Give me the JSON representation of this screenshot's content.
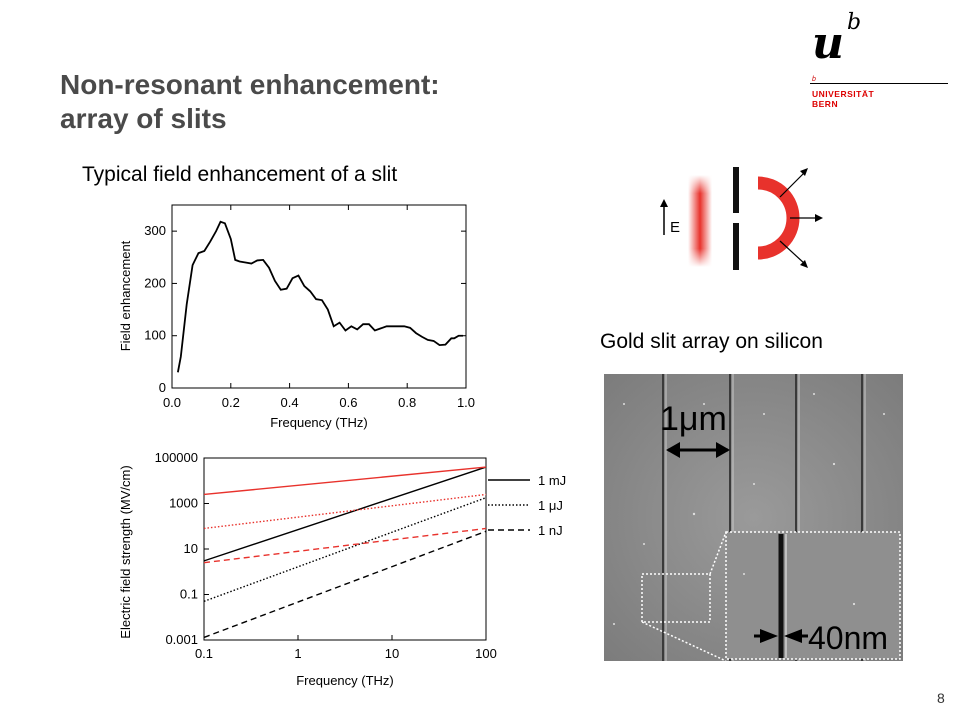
{
  "slide": {
    "title_line1": "Non-resonant enhancement:",
    "title_line2": "array of slits",
    "subtitle_left": "Typical field enhancement of a slit",
    "subtitle_right": "Gold slit array on silicon",
    "page_number": "8"
  },
  "logo": {
    "letter_u": "u",
    "letter_b": "b",
    "small_b": "b",
    "line1": "UNIVERSITÄT",
    "line2": "BERN"
  },
  "schematic": {
    "field_label": "E",
    "colors": {
      "beam": "#e8322c",
      "slit": "#111111"
    }
  },
  "sem_image": {
    "scale_label_1": "1μm",
    "scale_label_2": "40nm"
  },
  "chart_data": [
    {
      "type": "line",
      "xlabel": "Frequency (THz)",
      "ylabel": "Field enhancement",
      "xlim": [
        0.0,
        1.0
      ],
      "ylim": [
        0,
        350
      ],
      "xticks": [
        "0.0",
        "0.2",
        "0.4",
        "0.6",
        "0.8",
        "1.0"
      ],
      "yticks": [
        "0",
        "100",
        "200",
        "300"
      ],
      "series": [
        {
          "color": "#000000",
          "x": [
            0.02,
            0.03,
            0.05,
            0.07,
            0.09,
            0.11,
            0.13,
            0.15,
            0.165,
            0.18,
            0.2,
            0.215,
            0.23,
            0.25,
            0.27,
            0.29,
            0.31,
            0.33,
            0.35,
            0.37,
            0.39,
            0.41,
            0.43,
            0.45,
            0.47,
            0.49,
            0.51,
            0.53,
            0.55,
            0.57,
            0.59,
            0.61,
            0.63,
            0.65,
            0.67,
            0.69,
            0.71,
            0.73,
            0.75,
            0.77,
            0.79,
            0.81,
            0.83,
            0.85,
            0.87,
            0.89,
            0.91,
            0.93,
            0.95,
            0.96,
            0.975,
            0.99
          ],
          "y": [
            30,
            60,
            160,
            235,
            258,
            262,
            280,
            300,
            318,
            315,
            285,
            245,
            242,
            240,
            238,
            244,
            245,
            230,
            205,
            188,
            190,
            210,
            215,
            195,
            185,
            170,
            168,
            150,
            118,
            125,
            110,
            118,
            112,
            122,
            122,
            110,
            114,
            118,
            118,
            118,
            118,
            115,
            105,
            98,
            92,
            90,
            82,
            83,
            95,
            95,
            100,
            100
          ]
        }
      ]
    },
    {
      "type": "line",
      "xlabel": "Frequency (THz)",
      "ylabel": "Electric field strength (MV/cm)",
      "xscale": "log",
      "yscale": "log",
      "xlim": [
        0.1,
        100
      ],
      "ylim": [
        0.001,
        100000
      ],
      "xticks": [
        "0.1",
        "1",
        "10",
        "100"
      ],
      "yticks": [
        "0.001",
        "0.1",
        "10",
        "1000",
        "100000"
      ],
      "legend": [
        "1 mJ",
        "1 μJ",
        "1 nJ"
      ],
      "series": [
        {
          "color": "#000000",
          "dash": "solid",
          "x": [
            0.1,
            100
          ],
          "y": [
            3,
            40000
          ]
        },
        {
          "color": "#000000",
          "dash": "dotted",
          "x": [
            0.1,
            100
          ],
          "y": [
            0.05,
            1800
          ]
        },
        {
          "color": "#000000",
          "dash": "dashed",
          "x": [
            0.1,
            100
          ],
          "y": [
            0.0013,
            60
          ]
        },
        {
          "color": "#e8322c",
          "dash": "solid",
          "x": [
            0.1,
            100
          ],
          "y": [
            2500,
            40000
          ]
        },
        {
          "color": "#e8322c",
          "dash": "dotted",
          "x": [
            0.1,
            100
          ],
          "y": [
            80,
            2500
          ]
        },
        {
          "color": "#e8322c",
          "dash": "dashed",
          "x": [
            0.1,
            100
          ],
          "y": [
            2.5,
            80
          ]
        }
      ]
    }
  ]
}
